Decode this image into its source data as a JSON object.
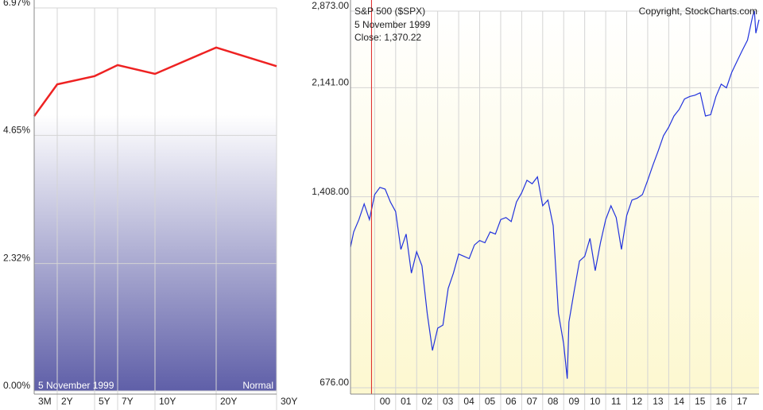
{
  "chart_data": [
    {
      "type": "line",
      "categories": [
        "3M",
        "2Y",
        "5Y",
        "7Y",
        "10Y",
        "20Y",
        "30Y"
      ],
      "values": [
        5.0,
        5.58,
        5.73,
        5.93,
        5.77,
        6.25,
        5.91
      ],
      "color": "#ee2222",
      "ylim": [
        0,
        6.97
      ],
      "yticks": [
        {
          "value": 0,
          "label": "0.00%"
        },
        {
          "value": 2.32,
          "label": "2.32%"
        },
        {
          "value": 4.65,
          "label": "4.65%"
        },
        {
          "value": 6.97,
          "label": "6.97%"
        }
      ],
      "annotations": [
        "5  November 1999",
        "Normal"
      ],
      "grid": true
    },
    {
      "type": "line",
      "title": "S&P 500 ($SPX)",
      "copyright": "Copyright, StockCharts.com",
      "annotations": [
        "5  November 1999",
        "Close: 1,370.22"
      ],
      "x": [
        1998.85,
        1999.0,
        1999.25,
        1999.5,
        1999.75,
        2000.0,
        2000.25,
        2000.5,
        2000.75,
        2001.0,
        2001.25,
        2001.5,
        2001.75,
        2002.0,
        2002.25,
        2002.5,
        2002.75,
        2003.0,
        2003.25,
        2003.5,
        2003.75,
        2004.0,
        2004.25,
        2004.5,
        2004.75,
        2005.0,
        2005.25,
        2005.5,
        2005.75,
        2006.0,
        2006.25,
        2006.5,
        2006.75,
        2007.0,
        2007.25,
        2007.5,
        2007.75,
        2008.0,
        2008.25,
        2008.5,
        2008.75,
        2009.0,
        2009.17,
        2009.25,
        2009.5,
        2009.75,
        2010.0,
        2010.25,
        2010.5,
        2010.75,
        2011.0,
        2011.25,
        2011.5,
        2011.75,
        2012.0,
        2012.25,
        2012.5,
        2012.75,
        2013.0,
        2013.25,
        2013.5,
        2013.75,
        2014.0,
        2014.25,
        2014.5,
        2014.75,
        2015.0,
        2015.25,
        2015.5,
        2015.75,
        2016.0,
        2016.25,
        2016.5,
        2016.75,
        2017.0,
        2017.25,
        2017.5,
        2017.75,
        2018.0,
        2018.08,
        2018.15,
        2018.3
      ],
      "values": [
        1160,
        1230,
        1290,
        1370,
        1290,
        1420,
        1460,
        1450,
        1380,
        1330,
        1150,
        1220,
        1050,
        1140,
        1080,
        900,
        780,
        850,
        860,
        990,
        1050,
        1130,
        1120,
        1110,
        1170,
        1190,
        1180,
        1230,
        1220,
        1290,
        1300,
        1280,
        1380,
        1430,
        1500,
        1480,
        1520,
        1360,
        1390,
        1260,
        900,
        800,
        700,
        870,
        980,
        1100,
        1120,
        1200,
        1060,
        1180,
        1290,
        1360,
        1300,
        1150,
        1310,
        1390,
        1400,
        1420,
        1500,
        1590,
        1680,
        1780,
        1840,
        1920,
        1970,
        2050,
        2070,
        2080,
        2100,
        1920,
        1930,
        2070,
        2170,
        2140,
        2270,
        2370,
        2470,
        2570,
        2823,
        2873,
        2640,
        2780
      ],
      "color": "#2233dd",
      "log_scale": true,
      "xlim": [
        1998.85,
        2018.3
      ],
      "xticks": [
        {
          "value": 2000,
          "label": "00"
        },
        {
          "value": 2001,
          "label": "01"
        },
        {
          "value": 2002,
          "label": "02"
        },
        {
          "value": 2003,
          "label": "03"
        },
        {
          "value": 2004,
          "label": "04"
        },
        {
          "value": 2005,
          "label": "05"
        },
        {
          "value": 2006,
          "label": "06"
        },
        {
          "value": 2007,
          "label": "07"
        },
        {
          "value": 2008,
          "label": "08"
        },
        {
          "value": 2009,
          "label": "09"
        },
        {
          "value": 2010,
          "label": "10"
        },
        {
          "value": 2011,
          "label": "11"
        },
        {
          "value": 2012,
          "label": "12"
        },
        {
          "value": 2013,
          "label": "13"
        },
        {
          "value": 2014,
          "label": "14"
        },
        {
          "value": 2015,
          "label": "15"
        },
        {
          "value": 2016,
          "label": "16"
        },
        {
          "value": 2017,
          "label": "17"
        }
      ],
      "ylim": [
        676,
        2873
      ],
      "yticks": [
        {
          "value": 676,
          "label": "676.00"
        },
        {
          "value": 1408,
          "label": "1,408.00"
        },
        {
          "value": 2141,
          "label": "2,141.00"
        },
        {
          "value": 2873,
          "label": "2,873.00"
        }
      ],
      "cursor": {
        "x": 1999.85,
        "color": "#dd2222"
      },
      "grid": true
    }
  ]
}
